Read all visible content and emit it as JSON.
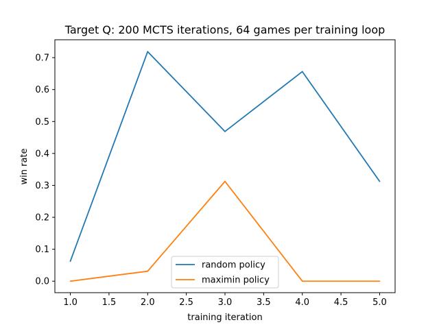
{
  "chart_data": {
    "type": "line",
    "title": "Target Q: 200 MCTS iterations, 64 games per training loop",
    "xlabel": "training iteration",
    "ylabel": "win rate",
    "xlim": [
      0.8,
      5.2
    ],
    "ylim": [
      -0.036,
      0.756
    ],
    "xticks": [
      1.0,
      1.5,
      2.0,
      2.5,
      3.0,
      3.5,
      4.0,
      4.5,
      5.0
    ],
    "xtick_labels": [
      "1.0",
      "1.5",
      "2.0",
      "2.5",
      "3.0",
      "3.5",
      "4.0",
      "4.5",
      "5.0"
    ],
    "yticks": [
      0.0,
      0.1,
      0.2,
      0.3,
      0.4,
      0.5,
      0.6,
      0.7
    ],
    "ytick_labels": [
      "0.0",
      "0.1",
      "0.2",
      "0.3",
      "0.4",
      "0.5",
      "0.6",
      "0.7"
    ],
    "grid": false,
    "legend_position": "lower-center",
    "x": [
      1,
      2,
      3,
      4,
      5
    ],
    "series": [
      {
        "name": "random policy",
        "color": "#1f77b4",
        "values": [
          0.0625,
          0.71875,
          0.46875,
          0.65625,
          0.3125
        ]
      },
      {
        "name": "maximin policy",
        "color": "#ff7f0e",
        "values": [
          0.0,
          0.03125,
          0.3125,
          0.0,
          0.0
        ]
      }
    ]
  }
}
